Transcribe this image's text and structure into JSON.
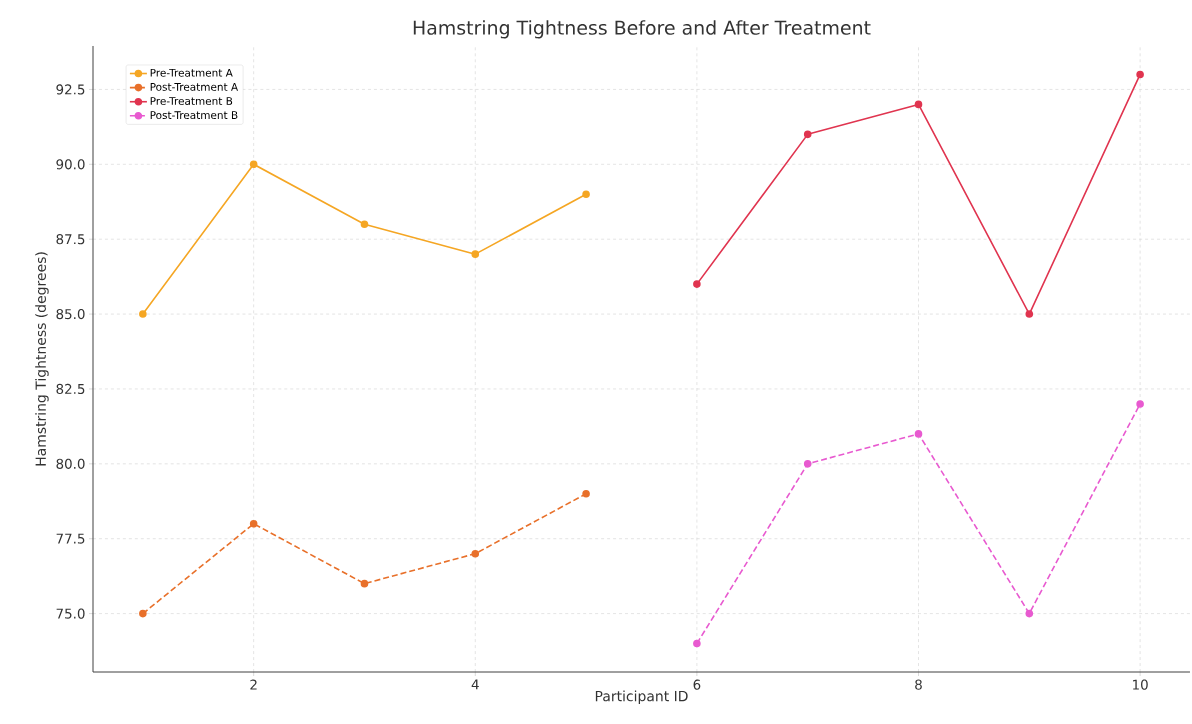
{
  "chart_data": {
    "type": "line",
    "title": "Hamstring Tightness Before and After Treatment",
    "xlabel": "Participant ID",
    "ylabel": "Hamstring Tightness (degrees)",
    "xlim": [
      0.55,
      10.45
    ],
    "ylim": [
      73.05,
      93.95
    ],
    "xticks": [
      2,
      4,
      6,
      8,
      10
    ],
    "yticks": [
      {
        "value": 75,
        "label": "75.0"
      },
      {
        "value": 77.5,
        "label": "77.5"
      },
      {
        "value": 80,
        "label": "80.0"
      },
      {
        "value": 82.5,
        "label": "82.5"
      },
      {
        "value": 85,
        "label": "85.0"
      },
      {
        "value": 87.5,
        "label": "87.5"
      },
      {
        "value": 90,
        "label": "90.0"
      },
      {
        "value": 92.5,
        "label": "92.5"
      }
    ],
    "grid": true,
    "legend": "top left",
    "marker": "circle",
    "series": [
      {
        "name": "Pre-Treatment A",
        "color": "#f5a623",
        "line_style": "solid",
        "x": [
          1,
          2,
          3,
          4,
          5
        ],
        "values": [
          85,
          90,
          88,
          87,
          89
        ]
      },
      {
        "name": "Post-Treatment A",
        "color": "#e8702a",
        "line_style": "dashed",
        "x": [
          1,
          2,
          3,
          4,
          5
        ],
        "values": [
          75,
          78,
          76,
          77,
          79
        ]
      },
      {
        "name": "Pre-Treatment B",
        "color": "#e0344f",
        "line_style": "solid",
        "x": [
          6,
          7,
          8,
          9,
          10
        ],
        "values": [
          86,
          91,
          92,
          85,
          93
        ]
      },
      {
        "name": "Post-Treatment B",
        "color": "#e85ad0",
        "line_style": "dashed",
        "x": [
          6,
          7,
          8,
          9,
          10
        ],
        "values": [
          74,
          80,
          81,
          75,
          82
        ]
      }
    ]
  }
}
